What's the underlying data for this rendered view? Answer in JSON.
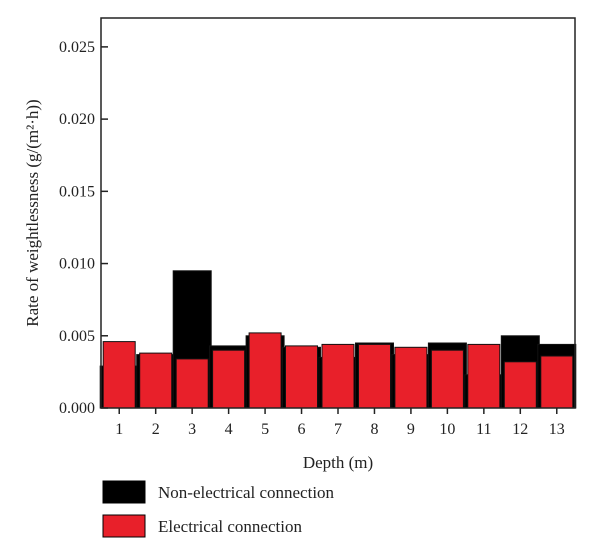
{
  "chart_data": {
    "type": "bar",
    "xlabel": "Depth (m)",
    "ylabel": "Rate of weightlessness (g/(m²·h))",
    "categories": [
      "1",
      "2",
      "3",
      "4",
      "5",
      "6",
      "7",
      "8",
      "9",
      "10",
      "11",
      "12",
      "13"
    ],
    "ylim": [
      0,
      0.027
    ],
    "yticks": [
      "0.000",
      "0.005",
      "0.010",
      "0.015",
      "0.020",
      "0.025"
    ],
    "grid": false,
    "legend_position": "bottom",
    "series": [
      {
        "name": "Non-electrical connection",
        "color": "#000000",
        "values": [
          0.0029,
          0.0037,
          0.0095,
          0.0043,
          0.005,
          0.0042,
          0.0035,
          0.0045,
          0.0037,
          0.0045,
          0.0023,
          0.005,
          0.0044
        ]
      },
      {
        "name": "Electrical connection",
        "color": "#e8202a",
        "values": [
          0.0046,
          0.0038,
          0.0034,
          0.004,
          0.0052,
          0.0043,
          0.0044,
          0.0044,
          0.0042,
          0.004,
          0.0044,
          0.0032,
          0.0036
        ]
      }
    ]
  }
}
